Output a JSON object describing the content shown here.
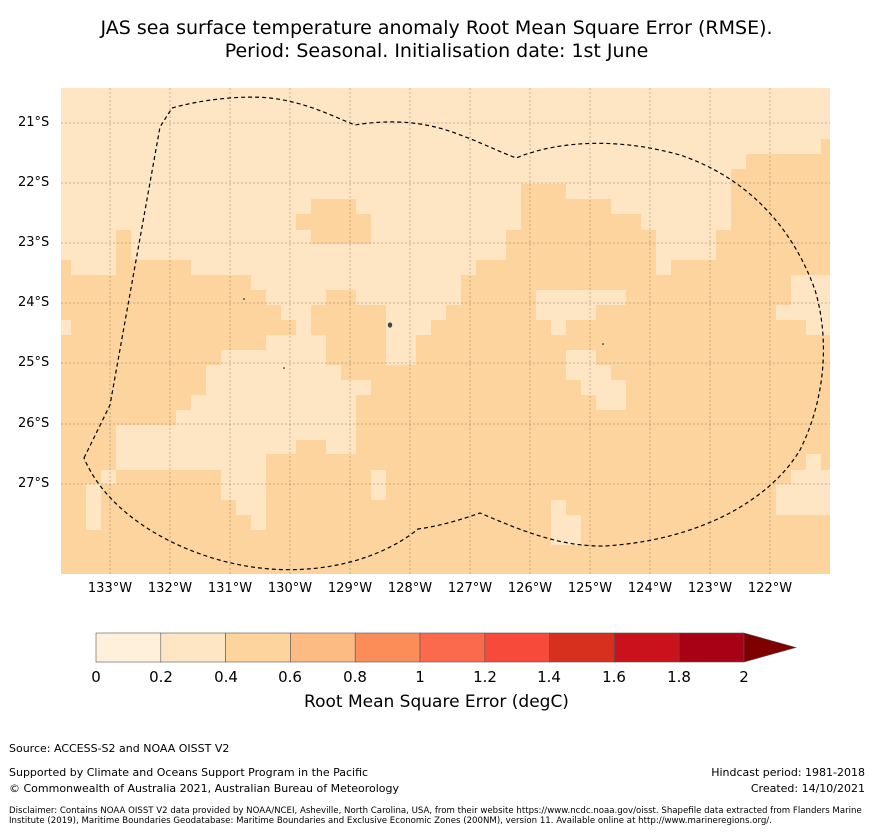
{
  "title_line1": "JAS sea surface temperature anomaly Root Mean Square Error (RMSE).",
  "title_line2": "Period: Seasonal. Initialisation date: 1st June",
  "map": {
    "lat_labels": [
      "21°S",
      "22°S",
      "23°S",
      "24°S",
      "25°S",
      "26°S",
      "27°S"
    ],
    "lon_labels": [
      "133°W",
      "132°W",
      "131°W",
      "130°W",
      "129°W",
      "128°W",
      "127°W",
      "126°W",
      "125°W",
      "124°W",
      "123°W",
      "122°W"
    ],
    "lat_range": [
      -28.5,
      -20.4
    ],
    "lon_range": [
      -133.8,
      -121.0
    ],
    "boundary": "dashed EEZ boundary (Pitcairn Islands)",
    "fill_colors": {
      "0.2-0.4": "#fee6c5",
      "0.4-0.6": "#fdd49e"
    }
  },
  "colorbar": {
    "label": "Root Mean Square Error (degC)",
    "ticks": [
      "0",
      "0.2",
      "0.4",
      "0.6",
      "0.8",
      "1",
      "1.2",
      "1.4",
      "1.6",
      "1.8",
      "2"
    ],
    "colors": [
      "#fff0dc",
      "#fee6c5",
      "#fdd49e",
      "#fdbb84",
      "#fc8d59",
      "#fc6a4d",
      "#f84a3a",
      "#d7301f",
      "#c9121b",
      "#a80014"
    ],
    "extend_color": "#7f0000"
  },
  "footer": {
    "source": "Source: ACCESS-S2 and NOAA OISST V2",
    "supported": "Supported by Climate and Oceans Support Program in the Pacific",
    "copyright": "© Commonwealth of Australia 2021, Australian Bureau of Meteorology",
    "hindcast": "Hindcast period: 1981-2018",
    "created": "Created: 14/10/2021",
    "disclaimer": "Disclaimer: Contains NOAA OISST V2 data provided by NOAA/NCEI, Asheville, North Carolina, USA, from their website https://www.ncdc.noaa.gov/oisst. Shapefile data extracted from Flanders Marine Institute (2019), Maritime Boundaries Geodatabase: Maritime Boundaries and Exclusive Economic Zones (200NM), version 11. Available online at http://www.marineregions.org/."
  }
}
